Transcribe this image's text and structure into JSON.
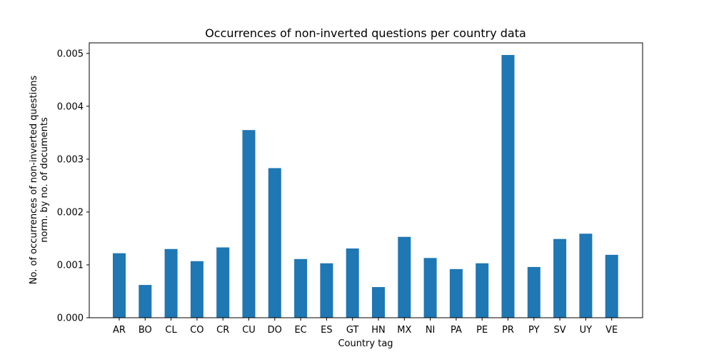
{
  "chart_data": {
    "type": "bar",
    "title": "Occurrences of non-inverted questions per country data",
    "xlabel": "Country tag",
    "ylabel_lines": [
      "No. of occurrences of non-inverted questions",
      "norm. by no. of documents"
    ],
    "categories": [
      "AR",
      "BO",
      "CL",
      "CO",
      "CR",
      "CU",
      "DO",
      "EC",
      "ES",
      "GT",
      "HN",
      "MX",
      "NI",
      "PA",
      "PE",
      "PR",
      "PY",
      "SV",
      "UY",
      "VE"
    ],
    "values": [
      0.00122,
      0.00062,
      0.0013,
      0.00107,
      0.00133,
      0.00355,
      0.00283,
      0.00111,
      0.00103,
      0.00131,
      0.00058,
      0.00153,
      0.00113,
      0.00092,
      0.00103,
      0.00497,
      0.00096,
      0.00149,
      0.00159,
      0.00119
    ],
    "ylim": [
      0,
      0.0052
    ],
    "yticks": [
      0,
      0.001,
      0.002,
      0.003,
      0.004,
      0.005
    ],
    "ytick_labels": [
      "0.000",
      "0.001",
      "0.002",
      "0.003",
      "0.004",
      "0.005"
    ],
    "grid": false,
    "bar_color": "#1f77b4"
  }
}
